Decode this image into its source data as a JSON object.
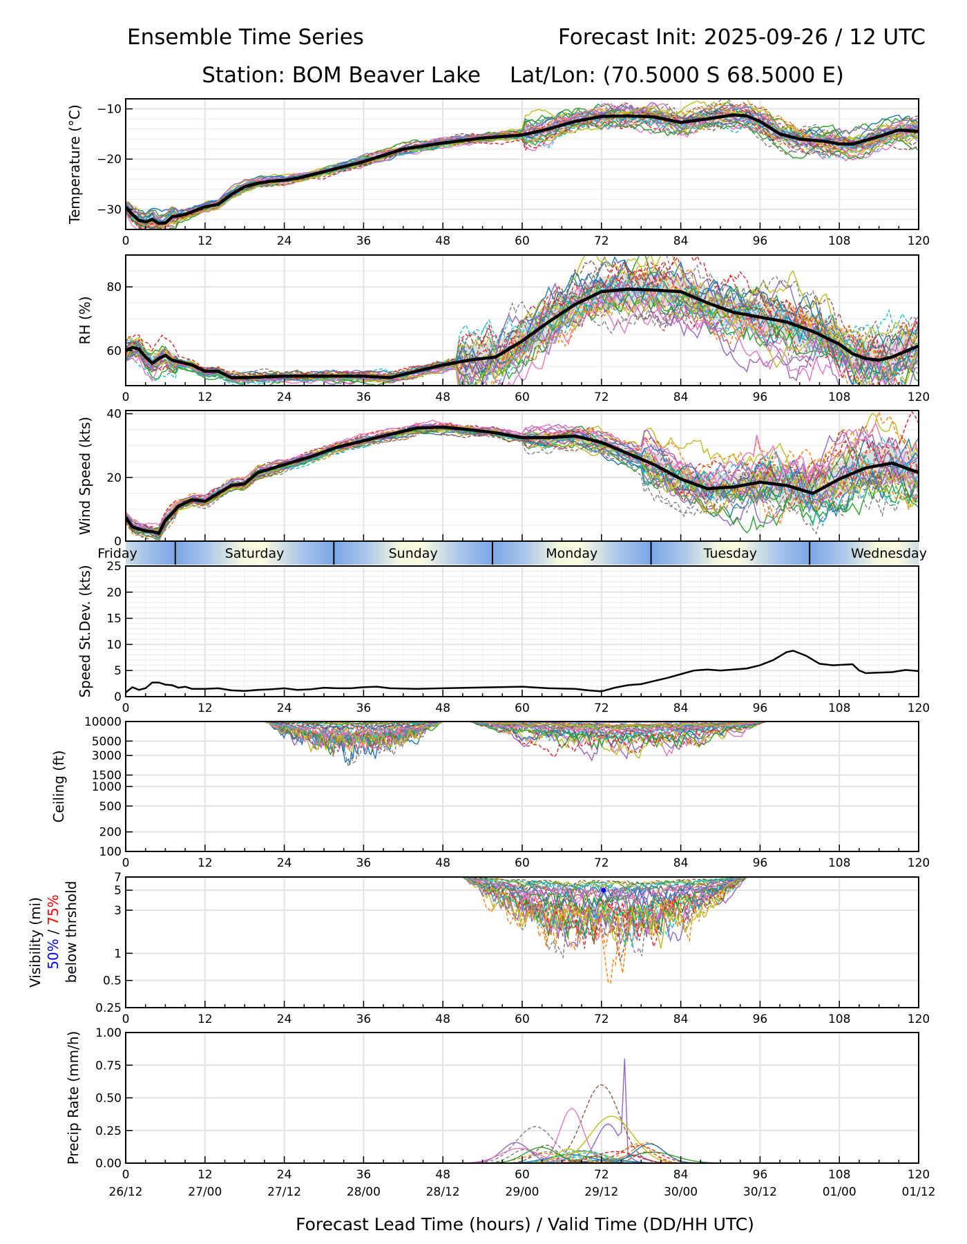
{
  "chart_data": {
    "type": "line",
    "title_left": "Ensemble Time Series",
    "title_right": "Forecast Init: 2025-09-26 / 12 UTC",
    "subtitle_station": "Station: BOM Beaver Lake",
    "subtitle_latlon": "Lat/Lon: (70.5000 S 68.5000 E)",
    "xlabel": "Forecast Lead Time (hours) / Valid Time (DD/HH UTC)",
    "xlim": [
      0,
      120
    ],
    "x_ticks": [
      0,
      12,
      24,
      36,
      48,
      60,
      72,
      84,
      96,
      108,
      120
    ],
    "x_tick_labels": [
      "0",
      "12",
      "24",
      "36",
      "48",
      "60",
      "72",
      "84",
      "96",
      "108",
      "120"
    ],
    "valid_time_labels": [
      "26/12",
      "27/00",
      "27/12",
      "28/00",
      "28/12",
      "29/00",
      "29/12",
      "30/00",
      "30/12",
      "01/00",
      "01/12"
    ],
    "grid": true,
    "day_band": {
      "labels": [
        "Friday",
        "Saturday",
        "Sunday",
        "Monday",
        "Tuesday",
        "Wednesday"
      ],
      "boundaries_hours": [
        7.5,
        31.5,
        55.5,
        79.5,
        103.5
      ]
    },
    "panels": [
      {
        "id": "temperature",
        "ylabel": "Temperature (°C)",
        "ylim": [
          -34,
          -8
        ],
        "y_ticks": [
          -10,
          -20,
          -30
        ],
        "y_tick_labels": [
          "−10",
          "−20",
          "−30"
        ],
        "scale": "linear",
        "ensemble_members": 30,
        "mean": {
          "x": [
            0,
            1,
            2,
            3,
            4,
            5,
            6,
            7,
            9,
            11,
            12,
            14,
            16,
            18,
            20,
            22,
            24,
            26,
            30,
            36,
            42,
            48,
            54,
            60,
            64,
            68,
            72,
            76,
            80,
            84,
            88,
            92,
            94,
            96,
            99,
            102,
            106,
            108,
            110,
            114,
            117,
            120
          ],
          "y": [
            -29.5,
            -31,
            -32.2,
            -32.5,
            -32,
            -32.8,
            -32.7,
            -31.5,
            -31,
            -30,
            -29.5,
            -29,
            -27,
            -25.5,
            -24.8,
            -24.4,
            -24.2,
            -23.8,
            -22.5,
            -20.5,
            -18,
            -16.8,
            -15.8,
            -15.2,
            -14,
            -12.5,
            -11.5,
            -11.4,
            -11.6,
            -12.7,
            -12,
            -11.2,
            -11.4,
            -12.5,
            -15,
            -16,
            -16.5,
            -17,
            -17,
            -15.5,
            -14.2,
            -14.5
          ]
        }
      },
      {
        "id": "rh",
        "ylabel": "RH (%)",
        "ylim": [
          49,
          90
        ],
        "y_ticks": [
          60,
          80
        ],
        "y_tick_labels": [
          "60",
          "80"
        ],
        "scale": "linear",
        "ensemble_members": 30,
        "mean": {
          "x": [
            0,
            1,
            2,
            3,
            4,
            5,
            6,
            7,
            8,
            10,
            12,
            14,
            16,
            18,
            24,
            30,
            36,
            40,
            44,
            48,
            52,
            56,
            60,
            64,
            68,
            72,
            76,
            80,
            84,
            88,
            92,
            96,
            100,
            104,
            108,
            110,
            112,
            114,
            116,
            120
          ],
          "y": [
            60,
            61,
            60.5,
            58,
            56,
            57.5,
            58.5,
            57,
            56.5,
            55.5,
            53.5,
            53.5,
            51.5,
            51.5,
            52,
            52,
            52,
            51.5,
            53.5,
            55.5,
            57,
            58,
            63,
            69,
            74.5,
            78.5,
            79.3,
            79,
            78.5,
            75,
            72,
            70.5,
            69,
            66,
            62,
            59,
            57.5,
            57,
            58,
            61.5
          ]
        }
      },
      {
        "id": "wind_speed",
        "ylabel": "Wind Speed (kts)",
        "ylim": [
          0,
          41
        ],
        "y_ticks": [
          0,
          20,
          40
        ],
        "y_tick_labels": [
          "0",
          "20",
          "40"
        ],
        "scale": "linear",
        "ensemble_members": 30,
        "mean": {
          "x": [
            0,
            1,
            2,
            3,
            4,
            5,
            6,
            8,
            10,
            12,
            14,
            16,
            18,
            20,
            24,
            28,
            32,
            36,
            40,
            44,
            48,
            52,
            56,
            60,
            64,
            68,
            72,
            76,
            80,
            84,
            88,
            92,
            96,
            100,
            104,
            108,
            112,
            116,
            120
          ],
          "y": [
            7.5,
            4.5,
            3.8,
            3.2,
            3,
            2.5,
            6.5,
            11,
            13,
            12.5,
            15,
            17.5,
            18,
            21.5,
            24,
            26.5,
            29.5,
            31.5,
            33.5,
            35.5,
            35.8,
            35,
            34,
            32.5,
            32.5,
            33,
            31,
            27.5,
            24,
            19.5,
            16.5,
            17,
            18.5,
            17.5,
            15,
            19.5,
            23,
            24.5,
            21.5
          ]
        }
      },
      {
        "id": "speed_stddev",
        "ylabel": "Speed St.Dev. (kts)",
        "ylim": [
          0,
          25
        ],
        "y_ticks": [
          0,
          5,
          10,
          15,
          20,
          25
        ],
        "y_tick_labels": [
          "0",
          "5",
          "10",
          "15",
          "20",
          "25"
        ],
        "scale": "linear",
        "series": {
          "x": [
            0,
            0.5,
            1,
            2,
            3,
            4,
            5,
            6,
            7,
            8,
            9,
            10,
            12,
            14,
            16,
            18,
            20,
            22,
            24,
            26,
            28,
            30,
            32,
            34,
            36,
            38,
            40,
            44,
            48,
            52,
            56,
            60,
            64,
            68,
            70,
            72,
            74,
            76,
            78,
            80,
            82,
            84,
            86,
            88,
            90,
            92,
            94,
            96,
            98,
            100,
            101,
            103,
            105,
            107,
            110,
            111,
            112,
            114,
            116,
            118,
            120
          ],
          "y": [
            0.8,
            1.3,
            1.8,
            1.3,
            1.6,
            2.7,
            2.7,
            2.3,
            2.2,
            1.7,
            1.9,
            1.5,
            1.5,
            1.6,
            1.2,
            1.1,
            1.3,
            1.4,
            1.6,
            1.3,
            1.4,
            1.7,
            1.6,
            1.6,
            1.8,
            1.9,
            1.6,
            1.5,
            1.6,
            1.7,
            1.8,
            1.9,
            1.6,
            1.5,
            1.2,
            1.0,
            1.7,
            2.2,
            2.4,
            3.0,
            3.6,
            4.3,
            5.0,
            5.2,
            5.0,
            5.2,
            5.4,
            6.0,
            7.0,
            8.5,
            8.8,
            7.8,
            6.3,
            6.0,
            6.2,
            5.0,
            4.5,
            4.6,
            4.7,
            5.1,
            4.9
          ]
        }
      },
      {
        "id": "ceiling",
        "ylabel": "Ceiling (ft)",
        "ylim": [
          100,
          10000
        ],
        "y_ticks": [
          100,
          200,
          500,
          1000,
          1500,
          3000,
          5000,
          10000
        ],
        "y_tick_labels": [
          "100",
          "200",
          "500",
          "1000",
          "1500",
          "3000",
          "5000",
          "10000"
        ],
        "scale": "log",
        "ensemble_members": 30,
        "active_hours": [
          [
            21,
            48
          ],
          [
            52,
            97
          ]
        ],
        "min_value": 2800
      },
      {
        "id": "visibility",
        "ylabel_line1": "Visibility (mi)",
        "ylabel_50": "50%",
        "ylabel_sep": " / ",
        "ylabel_75": "75%",
        "ylabel_line3": "below thrshold",
        "color_50": "#0000ff",
        "color_75": "#ff0000",
        "ylim": [
          0.25,
          7
        ],
        "y_ticks": [
          0.25,
          0.5,
          1,
          3,
          5,
          7
        ],
        "y_tick_labels": [
          "0.25",
          "0.5",
          "1",
          "3",
          "5",
          "7"
        ],
        "scale": "log",
        "ensemble_members": 30,
        "active_hours": [
          [
            51,
            94
          ]
        ],
        "min_value": 0.7,
        "marker_50pct": {
          "x": 72.3,
          "y": 5
        }
      },
      {
        "id": "precip_rate",
        "ylabel": "Precip Rate (mm/h)",
        "ylim": [
          0,
          1.0
        ],
        "y_ticks": [
          0,
          0.25,
          0.5,
          0.75,
          1.0
        ],
        "y_tick_labels": [
          "0.00",
          "0.25",
          "0.50",
          "0.75",
          "1.00"
        ],
        "scale": "linear",
        "ensemble_members": 30,
        "peaks": [
          {
            "x": 75.4,
            "y": 0.87
          },
          {
            "x": 72,
            "y": 0.6
          },
          {
            "x": 67.5,
            "y": 0.42
          },
          {
            "x": 62,
            "y": 0.28
          },
          {
            "x": 73.5,
            "y": 0.36
          }
        ]
      }
    ],
    "legend": "none",
    "member_colors": [
      "#1f77b4",
      "#ff7f0e",
      "#2ca02c",
      "#d62728",
      "#9467bd",
      "#8c564b",
      "#e377c2",
      "#7f7f7f",
      "#bcbd22",
      "#17becf"
    ],
    "mean_color": "#000000",
    "spread_color": "#dddddd"
  }
}
